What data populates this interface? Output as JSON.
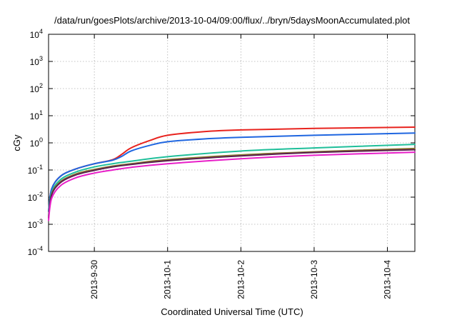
{
  "chart_data": {
    "type": "line",
    "title": "/data/run/goesPlots/archive/2013-10-04/09:00/flux/../bryn/5daysMoonAccumulated.plot",
    "xlabel": "Coordinated Universal Time (UTC)",
    "ylabel": "cGy",
    "yscale": "log",
    "ylim": [
      0.0001,
      10000
    ],
    "xlim": [
      "2013-09-29 09:00",
      "2013-10-04 09:00"
    ],
    "grid": true,
    "legend": "none",
    "y_ticks": [
      {
        "base": "10",
        "exp": "-4"
      },
      {
        "base": "10",
        "exp": "-3"
      },
      {
        "base": "10",
        "exp": "-2"
      },
      {
        "base": "10",
        "exp": "-1"
      },
      {
        "base": "10",
        "exp": "0"
      },
      {
        "base": "10",
        "exp": "1"
      },
      {
        "base": "10",
        "exp": "2"
      },
      {
        "base": "10",
        "exp": "3"
      },
      {
        "base": "10",
        "exp": "4"
      }
    ],
    "x_ticks": [
      "2013-9-30",
      "2013-10-1",
      "2013-10-2",
      "2013-10-3",
      "2013-10-4"
    ],
    "x_tick_dates": [
      "2013-09-30 00:00",
      "2013-10-01 00:00",
      "2013-10-02 00:00",
      "2013-10-03 00:00",
      "2013-10-04 00:00"
    ],
    "series": [
      {
        "color": "#e8231e",
        "points": [
          [
            "2013-09-29 09:00",
            0.003
          ],
          [
            "2013-09-29 10:00",
            0.02
          ],
          [
            "2013-09-29 13:00",
            0.06
          ],
          [
            "2013-09-29 18:00",
            0.11
          ],
          [
            "2013-09-30 00:00",
            0.17
          ],
          [
            "2013-09-30 06:00",
            0.24
          ],
          [
            "2013-09-30 09:00",
            0.38
          ],
          [
            "2013-09-30 12:00",
            0.65
          ],
          [
            "2013-09-30 18:00",
            1.2
          ],
          [
            "2013-10-01 00:00",
            1.9
          ],
          [
            "2013-10-01 12:00",
            2.6
          ],
          [
            "2013-10-02 00:00",
            3.0
          ],
          [
            "2013-10-03 00:00",
            3.4
          ],
          [
            "2013-10-04 09:00",
            3.8
          ]
        ]
      },
      {
        "color": "#1f66e0",
        "points": [
          [
            "2013-09-29 09:00",
            0.003
          ],
          [
            "2013-09-29 10:00",
            0.02
          ],
          [
            "2013-09-29 13:00",
            0.06
          ],
          [
            "2013-09-29 18:00",
            0.11
          ],
          [
            "2013-09-30 00:00",
            0.17
          ],
          [
            "2013-09-30 06:00",
            0.23
          ],
          [
            "2013-09-30 09:00",
            0.32
          ],
          [
            "2013-09-30 12:00",
            0.5
          ],
          [
            "2013-09-30 18:00",
            0.8
          ],
          [
            "2013-10-01 00:00",
            1.1
          ],
          [
            "2013-10-01 12:00",
            1.4
          ],
          [
            "2013-10-02 00:00",
            1.6
          ],
          [
            "2013-10-03 00:00",
            1.9
          ],
          [
            "2013-10-04 09:00",
            2.3
          ]
        ]
      },
      {
        "color": "#1fbf9a",
        "points": [
          [
            "2013-09-29 09:00",
            0.002
          ],
          [
            "2013-09-29 10:00",
            0.015
          ],
          [
            "2013-09-29 13:00",
            0.045
          ],
          [
            "2013-09-29 18:00",
            0.085
          ],
          [
            "2013-09-30 00:00",
            0.13
          ],
          [
            "2013-09-30 06:00",
            0.17
          ],
          [
            "2013-09-30 12:00",
            0.21
          ],
          [
            "2013-10-01 00:00",
            0.31
          ],
          [
            "2013-10-02 00:00",
            0.5
          ],
          [
            "2013-10-03 00:00",
            0.65
          ],
          [
            "2013-10-04 09:00",
            0.88
          ]
        ]
      },
      {
        "color": "#8a7a2e",
        "points": [
          [
            "2013-09-29 09:00",
            0.0018
          ],
          [
            "2013-09-29 10:00",
            0.013
          ],
          [
            "2013-09-29 13:00",
            0.038
          ],
          [
            "2013-09-29 18:00",
            0.072
          ],
          [
            "2013-09-30 00:00",
            0.105
          ],
          [
            "2013-09-30 06:00",
            0.14
          ],
          [
            "2013-09-30 12:00",
            0.17
          ],
          [
            "2013-10-01 00:00",
            0.24
          ],
          [
            "2013-10-02 00:00",
            0.36
          ],
          [
            "2013-10-03 00:00",
            0.47
          ],
          [
            "2013-10-04 09:00",
            0.62
          ]
        ]
      },
      {
        "color": "#5a1f4f",
        "points": [
          [
            "2013-09-29 09:00",
            0.0017
          ],
          [
            "2013-09-29 10:00",
            0.012
          ],
          [
            "2013-09-29 13:00",
            0.035
          ],
          [
            "2013-09-29 18:00",
            0.066
          ],
          [
            "2013-09-30 00:00",
            0.097
          ],
          [
            "2013-09-30 06:00",
            0.13
          ],
          [
            "2013-09-30 12:00",
            0.16
          ],
          [
            "2013-10-01 00:00",
            0.22
          ],
          [
            "2013-10-02 00:00",
            0.33
          ],
          [
            "2013-10-03 00:00",
            0.44
          ],
          [
            "2013-10-04 09:00",
            0.56
          ]
        ]
      },
      {
        "color": "#e81ec8",
        "points": [
          [
            "2013-09-29 09:00",
            0.0014
          ],
          [
            "2013-09-29 10:00",
            0.009
          ],
          [
            "2013-09-29 13:00",
            0.027
          ],
          [
            "2013-09-29 18:00",
            0.052
          ],
          [
            "2013-09-30 00:00",
            0.077
          ],
          [
            "2013-09-30 06:00",
            0.1
          ],
          [
            "2013-09-30 12:00",
            0.125
          ],
          [
            "2013-10-01 00:00",
            0.17
          ],
          [
            "2013-10-02 00:00",
            0.26
          ],
          [
            "2013-10-03 00:00",
            0.35
          ],
          [
            "2013-10-04 09:00",
            0.45
          ]
        ]
      }
    ]
  }
}
